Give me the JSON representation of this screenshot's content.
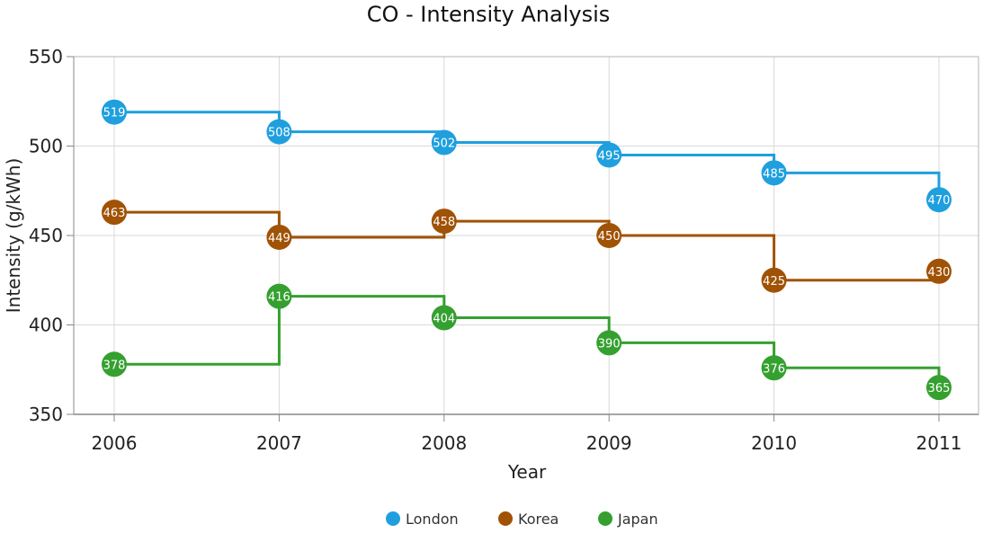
{
  "chart_data": {
    "type": "line",
    "subtype": "step",
    "title": "CO - Intensity Analysis",
    "xlabel": "Year",
    "ylabel": "Intensity (g/kWh)",
    "categories": [
      "2006",
      "2007",
      "2008",
      "2009",
      "2010",
      "2011"
    ],
    "ylim": [
      350,
      550
    ],
    "yticks": [
      350,
      400,
      450,
      500,
      550
    ],
    "grid": true,
    "legend_position": "bottom",
    "series": [
      {
        "name": "London",
        "color": "#1f9fde",
        "values": [
          519,
          508,
          502,
          495,
          485,
          470
        ]
      },
      {
        "name": "Korea",
        "color": "#a05205",
        "values": [
          463,
          449,
          458,
          450,
          425,
          430
        ]
      },
      {
        "name": "Japan",
        "color": "#35a02f",
        "values": [
          378,
          416,
          404,
          390,
          376,
          365
        ]
      }
    ]
  }
}
